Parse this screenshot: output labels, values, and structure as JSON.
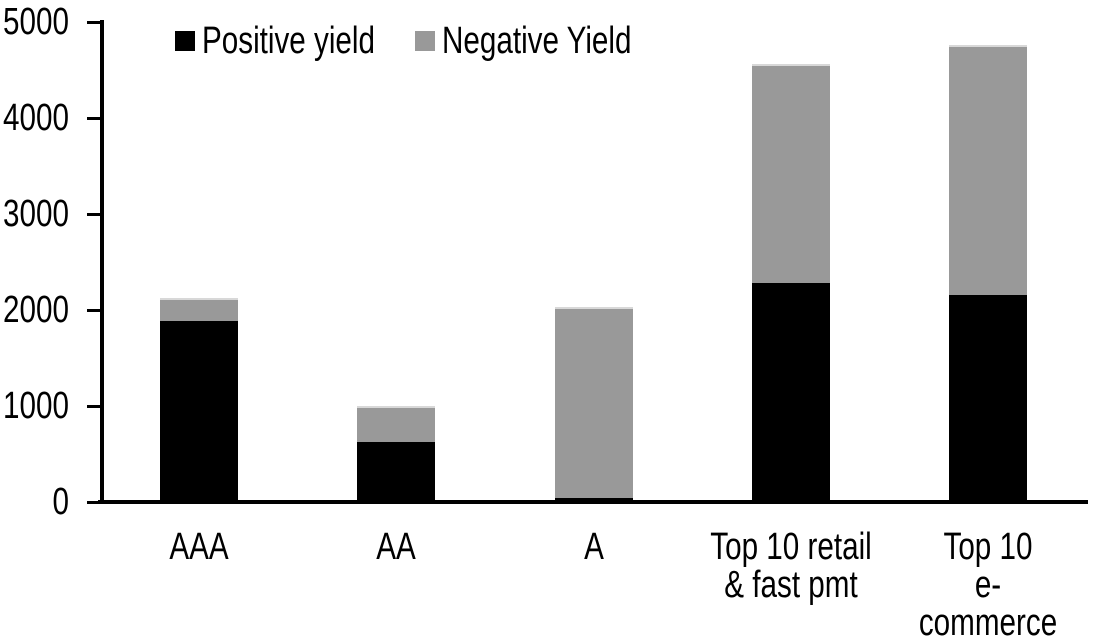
{
  "chart_data": {
    "type": "bar",
    "stacked": true,
    "title": "",
    "xlabel": "",
    "ylabel": "",
    "categories": [
      "AAA",
      "AA",
      "A",
      "Top 10 retail\n& fast pmt",
      "Top 10\ne-commerce"
    ],
    "series": [
      {
        "name": "Positive yield",
        "color": "#000000",
        "values": [
          1890,
          620,
          45,
          2280,
          2160
        ]
      },
      {
        "name": "Negative Yield",
        "color": "#999999",
        "values": [
          230,
          380,
          1985,
          2280,
          2600
        ]
      }
    ],
    "totals": [
      2120,
      1000,
      2030,
      4560,
      4760
    ],
    "ylim": [
      0,
      5000
    ],
    "yticks": [
      0,
      1000,
      2000,
      3000,
      4000,
      5000
    ],
    "grid": false,
    "legend_position": "top-left",
    "axis_color": "#000000",
    "background_color": "#ffffff"
  }
}
